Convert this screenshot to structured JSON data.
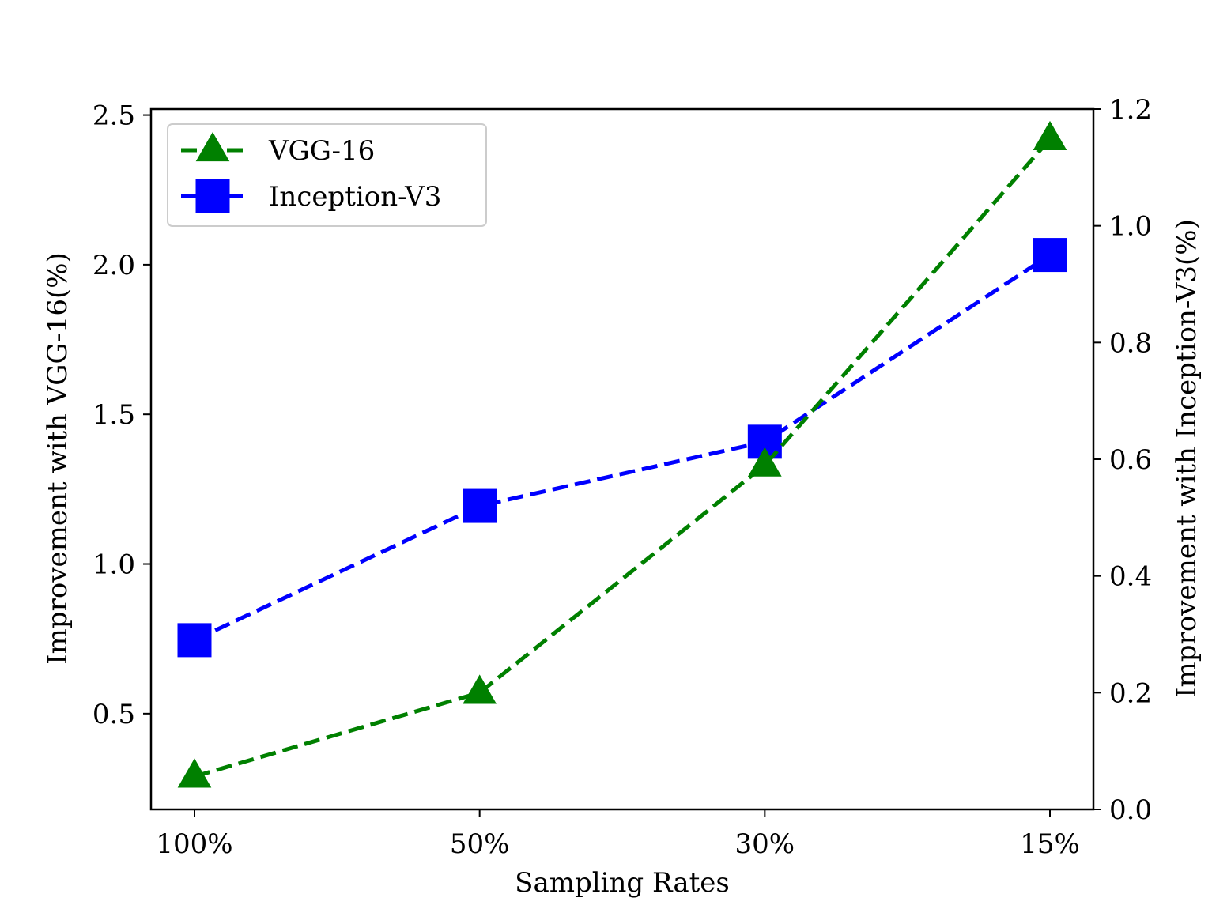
{
  "chart_data": {
    "type": "line",
    "categories": [
      "100%",
      "50%",
      "30%",
      "15%"
    ],
    "xlabel": "Sampling Rates",
    "ylabel": "Improvement with VGG-16(%)",
    "ylabel_right": "Improvement with Inception-V3(%)",
    "ylim": [
      0.18,
      2.52
    ],
    "ylim_right": [
      0.0,
      1.2
    ],
    "yticks": [
      0.5,
      1.0,
      1.5,
      2.0,
      2.5
    ],
    "yticks_right": [
      0.0,
      0.2,
      0.4,
      0.6,
      0.8,
      1.0,
      1.2
    ],
    "grid": false,
    "legend_position": "top-left",
    "series": [
      {
        "name": "VGG-16",
        "axis": "left",
        "color": "#008000",
        "marker": "triangle",
        "line_style": "dashed",
        "values": [
          0.29,
          0.57,
          1.33,
          2.42
        ]
      },
      {
        "name": "Inception-V3",
        "axis": "right",
        "color": "#0000ff",
        "marker": "square",
        "line_style": "dashed",
        "values": [
          0.29,
          0.52,
          0.63,
          0.95
        ]
      }
    ]
  }
}
